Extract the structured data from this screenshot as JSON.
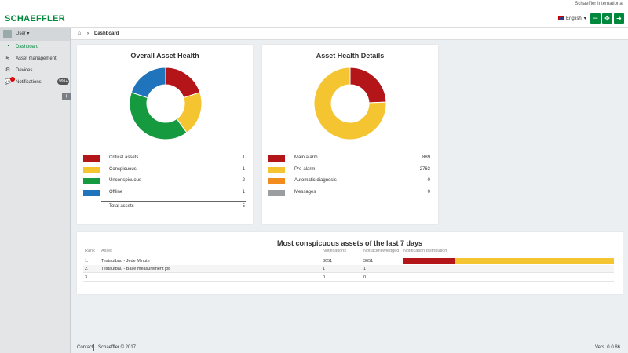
{
  "header": {
    "company": "Schaeffler International",
    "logo": "SCHAEFFLER",
    "language": "English",
    "buttons": [
      "menu-icon",
      "expand-icon",
      "logout-icon"
    ]
  },
  "sidebar": {
    "user": "User",
    "items": [
      {
        "label": "Dashboard",
        "icon": "dashboard-icon",
        "active": true
      },
      {
        "label": "Asset management",
        "icon": "sliders-icon"
      },
      {
        "label": "Devices",
        "icon": "devices-icon"
      },
      {
        "label": "Notifications",
        "icon": "comment-icon",
        "badge": "!",
        "count": "999+"
      }
    ]
  },
  "breadcrumb": {
    "current": "Dashboard"
  },
  "overall": {
    "title": "Overall Asset Health",
    "rows": [
      {
        "label": "Critical assets",
        "value": "1",
        "color": "#b31519"
      },
      {
        "label": "Conspicuous",
        "value": "1",
        "color": "#f5c531"
      },
      {
        "label": "Unconspicuous",
        "value": "2",
        "color": "#169a40"
      },
      {
        "label": "Offline",
        "value": "1",
        "color": "#1f74bc"
      }
    ],
    "total_label": "Total assets",
    "total_value": "5"
  },
  "details": {
    "title": "Asset Health Details",
    "rows": [
      {
        "label": "Main alarm",
        "value": "889",
        "color": "#b31519"
      },
      {
        "label": "Pre-alarm",
        "value": "2763",
        "color": "#f5c531"
      },
      {
        "label": "Automatic diagnosis",
        "value": "0",
        "color": "#f28c1e"
      },
      {
        "label": "Messages",
        "value": "0",
        "color": "#9a9ea1"
      }
    ]
  },
  "conspicuous": {
    "title": "Most conspicuous assets of the last 7 days",
    "headers": [
      "Rank",
      "Asset",
      "Notifications",
      "Not acknowledged",
      "Notification distribution"
    ],
    "rows": [
      {
        "rank": "1.",
        "asset": "Testaufbau - Jede Minute",
        "notifications": "3651",
        "not_ack": "3651",
        "dist": [
          0.245,
          0.755
        ]
      },
      {
        "rank": "2.",
        "asset": "Testaufbau - Base measurement job",
        "notifications": "1",
        "not_ack": "1",
        "dist": []
      },
      {
        "rank": "3.",
        "asset": "",
        "notifications": "0",
        "not_ack": "0",
        "dist": []
      }
    ]
  },
  "footer": {
    "contact": "Contact",
    "copyright": "Schaeffler © 2017",
    "version": "Vers. 0.0.86"
  }
}
